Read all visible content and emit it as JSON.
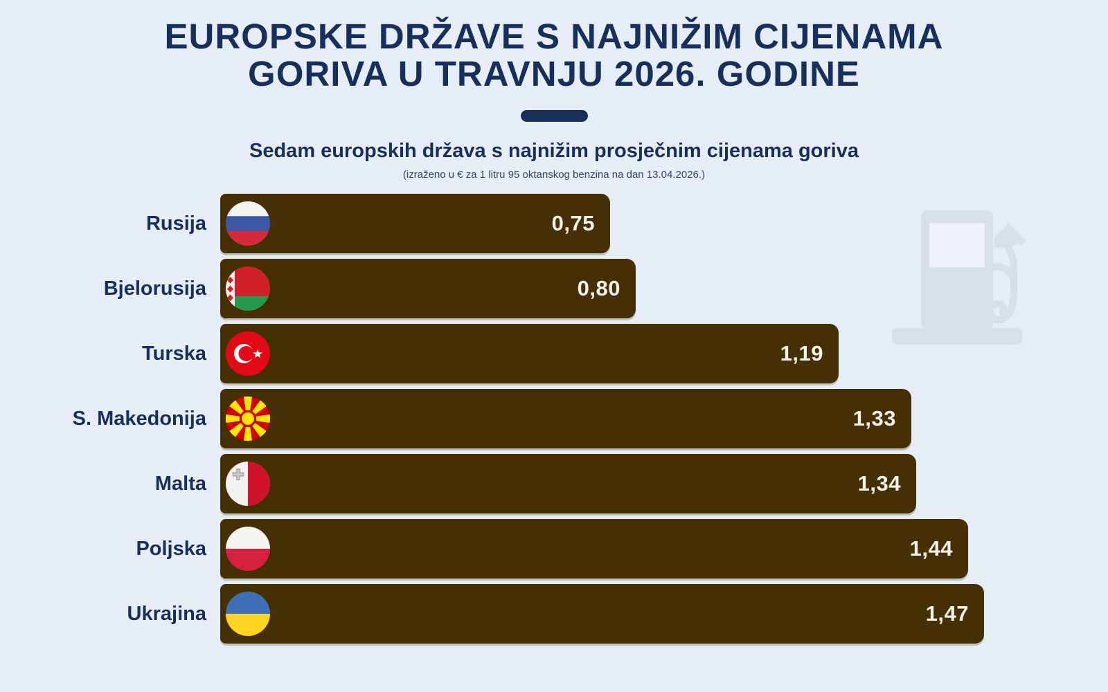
{
  "header": {
    "title_line1": "EUROPSKE DRŽAVE S NAJNIŽIM CIJENAMA",
    "title_line2": "GORIVA U TRAVNJU 2026. GODINE",
    "subtitle": "Sedam europskih država s najnižim prosječnim cijenama goriva",
    "caption": "(izraženo u € za 1 litru 95 oktanskog benzina na dan 13.04.2026.)"
  },
  "chart_data": {
    "type": "bar",
    "orientation": "horizontal",
    "title": "Sedam europskih država s najnižim prosječnim cijenama goriva",
    "unit": "€ za 1 litru 95 oktanskog benzina",
    "date": "13.04.2026.",
    "categories": [
      "Rusija",
      "Bjelorusija",
      "Turska",
      "S. Makedonija",
      "Malta",
      "Poljska",
      "Ukrajina"
    ],
    "values": [
      0.75,
      0.8,
      1.19,
      1.33,
      1.34,
      1.44,
      1.47
    ],
    "value_labels": [
      "0,75",
      "0,80",
      "1,19",
      "1,33",
      "1,34",
      "1,44",
      "1,47"
    ],
    "flags": [
      "russia",
      "belarus",
      "turkey",
      "north-macedonia",
      "malta",
      "poland",
      "ukraine"
    ],
    "xlim": [
      0,
      1.47
    ],
    "grid": false,
    "legend": false,
    "bar_color": "#452f04",
    "value_label_position": "inside-end"
  },
  "colors": {
    "background": "#e6edf7",
    "navy": "#16305b",
    "bar_brown": "#452f04",
    "value_text": "#f7f3ea",
    "pump_gray": "#d9dfe9"
  },
  "icons": {
    "pump": "fuel-pump-icon"
  }
}
